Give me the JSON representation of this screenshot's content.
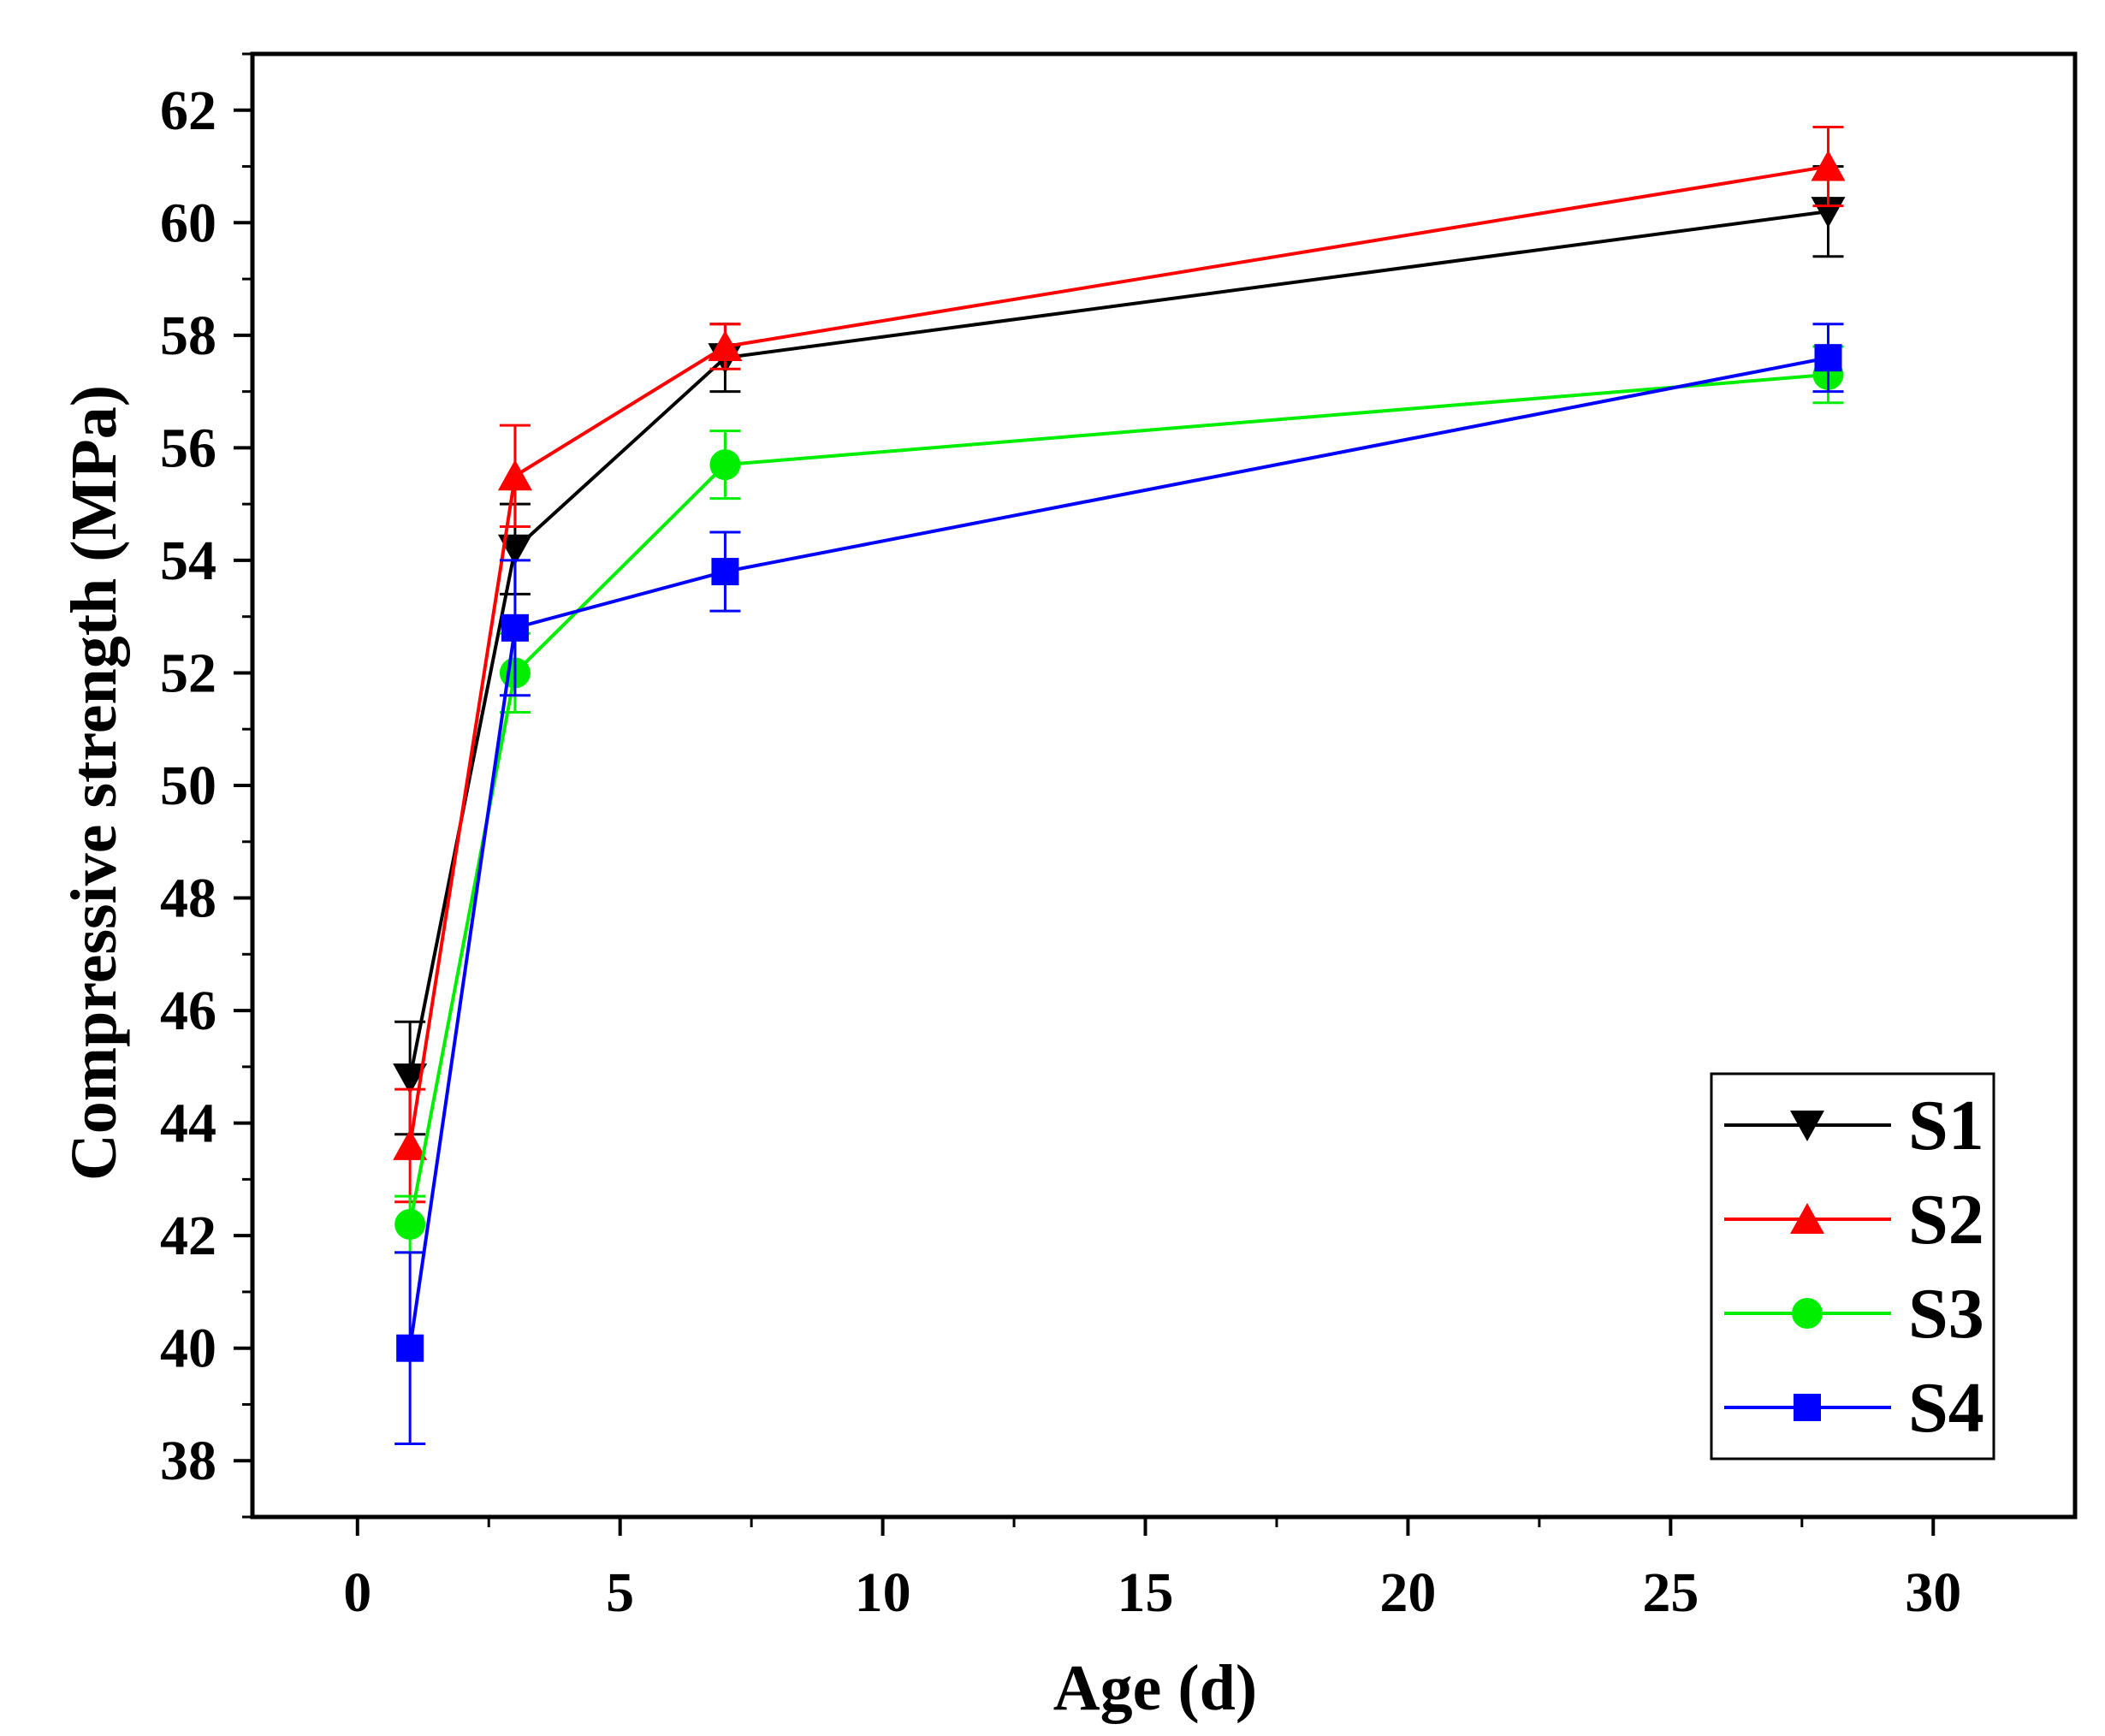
{
  "chart_data": {
    "type": "line",
    "xlabel": "Age (d)",
    "ylabel": "Compressive strength (MPa)",
    "xlim": [
      -2,
      32.7
    ],
    "ylim": [
      37,
      63
    ],
    "x_ticks": [
      0,
      5,
      10,
      15,
      20,
      25,
      30
    ],
    "x_tick_labels": [
      "0",
      "5",
      "10",
      "15",
      "20",
      "25",
      "30"
    ],
    "y_ticks": [
      38,
      40,
      42,
      44,
      46,
      48,
      50,
      52,
      54,
      56,
      58,
      60,
      62
    ],
    "y_tick_labels": [
      "38",
      "40",
      "42",
      "44",
      "46",
      "48",
      "50",
      "52",
      "54",
      "56",
      "58",
      "60",
      "62"
    ],
    "legend_position": "bottom-right",
    "x": [
      1,
      3,
      7,
      28
    ],
    "series": [
      {
        "name": "S1",
        "color": "#000000",
        "marker": "triangle-down",
        "values": [
          44.8,
          54.2,
          57.6,
          60.2
        ],
        "errors": [
          1.0,
          0.8,
          0.6,
          0.8
        ]
      },
      {
        "name": "S2",
        "color": "#ff0000",
        "marker": "triangle-up",
        "values": [
          43.6,
          55.5,
          57.8,
          61.0
        ],
        "errors": [
          1.0,
          0.9,
          0.4,
          0.7
        ]
      },
      {
        "name": "S3",
        "color": "#00ee00",
        "marker": "circle",
        "values": [
          42.2,
          52.0,
          55.7,
          57.3
        ],
        "errors": [
          0.5,
          0.7,
          0.6,
          0.5
        ]
      },
      {
        "name": "S4",
        "color": "#0000ff",
        "marker": "square",
        "values": [
          40.0,
          52.8,
          53.8,
          57.6
        ],
        "errors": [
          1.7,
          1.2,
          0.7,
          0.6
        ]
      }
    ]
  }
}
